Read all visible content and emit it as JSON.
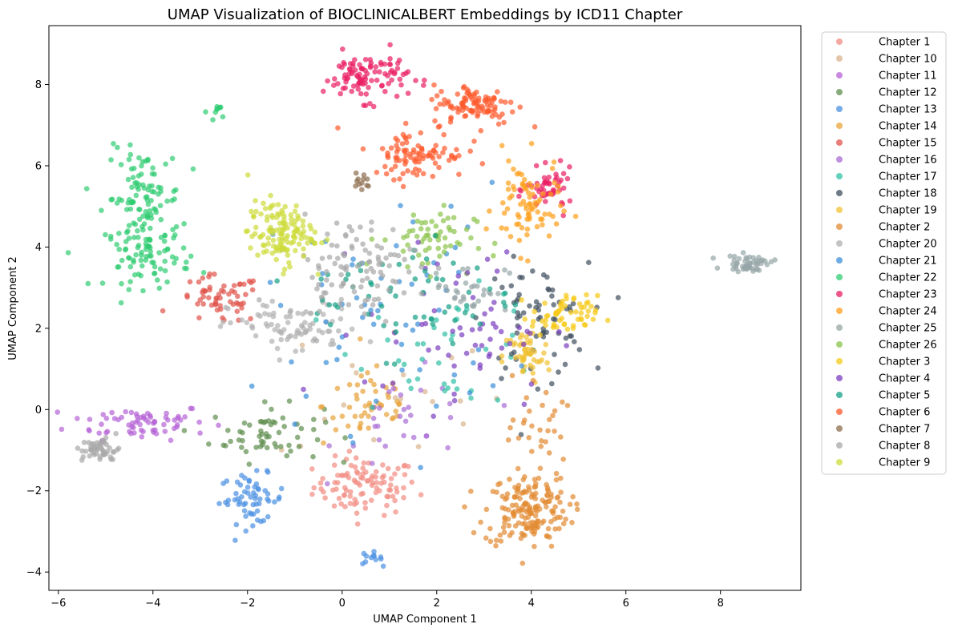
{
  "chart_data": {
    "type": "scatter",
    "title": "UMAP Visualization of BIOCLINICALBERT Embeddings by ICD11 Chapter",
    "xlabel": "UMAP Component 1",
    "ylabel": "UMAP Component 2",
    "xlim": [
      -6.2,
      9.7
    ],
    "ylim": [
      -4.45,
      9.45
    ],
    "xticks": [
      -6,
      -4,
      -2,
      0,
      2,
      4,
      6,
      8
    ],
    "yticks": [
      -4,
      -2,
      0,
      2,
      4,
      6,
      8
    ],
    "grid": false,
    "legend_position": "outside-right",
    "series": [
      {
        "name": "Chapter 1",
        "color": "#f28b82",
        "clusters": [
          {
            "cx": 0.5,
            "cy": -1.9,
            "sx": 0.55,
            "sy": 0.35,
            "n": 100
          }
        ]
      },
      {
        "name": "Chapter 10",
        "color": "#d9b38c",
        "clusters": [
          {
            "cx": 1.0,
            "cy": 0.5,
            "sx": 1.2,
            "sy": 1.0,
            "n": 20
          }
        ]
      },
      {
        "name": "Chapter 11",
        "color": "#b562d6",
        "clusters": [
          {
            "cx": -4.3,
            "cy": -0.3,
            "sx": 0.75,
            "sy": 0.22,
            "n": 70
          }
        ]
      },
      {
        "name": "Chapter 12",
        "color": "#5f8f4e",
        "clusters": [
          {
            "cx": -1.6,
            "cy": -0.6,
            "sx": 0.6,
            "sy": 0.35,
            "n": 60
          }
        ]
      },
      {
        "name": "Chapter 13",
        "color": "#4a90e2",
        "clusters": [
          {
            "cx": -1.9,
            "cy": -2.2,
            "sx": 0.35,
            "sy": 0.3,
            "n": 60
          },
          {
            "cx": 0.6,
            "cy": -3.65,
            "sx": 0.12,
            "sy": 0.08,
            "n": 12
          }
        ]
      },
      {
        "name": "Chapter 14",
        "color": "#e8a33a",
        "clusters": [
          {
            "cx": 0.6,
            "cy": 0.1,
            "sx": 0.5,
            "sy": 0.5,
            "n": 50
          }
        ]
      },
      {
        "name": "Chapter 15",
        "color": "#e0534a",
        "clusters": [
          {
            "cx": -2.6,
            "cy": 2.7,
            "sx": 0.45,
            "sy": 0.3,
            "n": 60
          }
        ]
      },
      {
        "name": "Chapter 16",
        "color": "#a96cd6",
        "clusters": [
          {
            "cx": 1.5,
            "cy": -0.3,
            "sx": 0.8,
            "sy": 0.6,
            "n": 30
          }
        ]
      },
      {
        "name": "Chapter 17",
        "color": "#2fc1a5",
        "clusters": [
          {
            "cx": 2.3,
            "cy": 1.5,
            "sx": 1.0,
            "sy": 0.7,
            "n": 40
          }
        ]
      },
      {
        "name": "Chapter 18",
        "color": "#3e4e5e",
        "clusters": [
          {
            "cx": 4.1,
            "cy": 2.2,
            "sx": 0.55,
            "sy": 0.7,
            "n": 70
          }
        ]
      },
      {
        "name": "Chapter 19",
        "color": "#f1c232",
        "clusters": [
          {
            "cx": 3.9,
            "cy": 1.3,
            "sx": 0.25,
            "sy": 0.35,
            "n": 50
          }
        ]
      },
      {
        "name": "Chapter 2",
        "color": "#e28a32",
        "clusters": [
          {
            "cx": 3.9,
            "cy": -2.5,
            "sx": 0.45,
            "sy": 0.45,
            "n": 160
          },
          {
            "cx": 4.1,
            "cy": -0.7,
            "sx": 0.3,
            "sy": 0.8,
            "n": 40
          }
        ]
      },
      {
        "name": "Chapter 20",
        "color": "#b0b0b0",
        "clusters": [
          {
            "cx": -1.0,
            "cy": 2.0,
            "sx": 0.7,
            "sy": 0.35,
            "n": 80
          }
        ]
      },
      {
        "name": "Chapter 21",
        "color": "#3b8fd9",
        "clusters": [
          {
            "cx": 1.0,
            "cy": 2.5,
            "sx": 1.3,
            "sy": 1.5,
            "n": 60
          }
        ]
      },
      {
        "name": "Chapter 22",
        "color": "#2ecc71",
        "clusters": [
          {
            "cx": -4.2,
            "cy": 5.2,
            "sx": 0.4,
            "sy": 0.6,
            "n": 100
          },
          {
            "cx": -4.1,
            "cy": 3.8,
            "sx": 0.45,
            "sy": 0.4,
            "n": 80
          },
          {
            "cx": -2.6,
            "cy": 7.35,
            "sx": 0.12,
            "sy": 0.1,
            "n": 10
          }
        ]
      },
      {
        "name": "Chapter 23",
        "color": "#e91e63",
        "clusters": [
          {
            "cx": 0.5,
            "cy": 8.2,
            "sx": 0.45,
            "sy": 0.3,
            "n": 100
          },
          {
            "cx": 4.4,
            "cy": 5.4,
            "sx": 0.25,
            "sy": 0.25,
            "n": 50
          }
        ]
      },
      {
        "name": "Chapter 24",
        "color": "#ff9f1a",
        "clusters": [
          {
            "cx": 3.9,
            "cy": 5.0,
            "sx": 0.35,
            "sy": 0.6,
            "n": 80
          }
        ]
      },
      {
        "name": "Chapter 25",
        "color": "#95a5a6",
        "clusters": [
          {
            "cx": 8.6,
            "cy": 3.6,
            "sx": 0.25,
            "sy": 0.1,
            "n": 50
          },
          {
            "cx": 2.7,
            "cy": 3.0,
            "sx": 0.4,
            "sy": 0.3,
            "n": 30
          }
        ]
      },
      {
        "name": "Chapter 26",
        "color": "#8bc34a",
        "clusters": [
          {
            "cx": 1.8,
            "cy": 4.2,
            "sx": 0.5,
            "sy": 0.4,
            "n": 60
          }
        ]
      },
      {
        "name": "Chapter 3",
        "color": "#f6c915",
        "clusters": [
          {
            "cx": 4.7,
            "cy": 2.3,
            "sx": 0.35,
            "sy": 0.25,
            "n": 60
          }
        ]
      },
      {
        "name": "Chapter 4",
        "color": "#7b3fbf",
        "clusters": [
          {
            "cx": 2.5,
            "cy": 2.0,
            "sx": 1.0,
            "sy": 1.0,
            "n": 60
          }
        ]
      },
      {
        "name": "Chapter 5",
        "color": "#16a085",
        "clusters": [
          {
            "cx": 1.5,
            "cy": 2.8,
            "sx": 1.1,
            "sy": 0.7,
            "n": 60
          }
        ]
      },
      {
        "name": "Chapter 6",
        "color": "#ff5a2c",
        "clusters": [
          {
            "cx": 2.8,
            "cy": 7.5,
            "sx": 0.45,
            "sy": 0.25,
            "n": 100
          },
          {
            "cx": 1.6,
            "cy": 6.3,
            "sx": 0.5,
            "sy": 0.3,
            "n": 90
          }
        ]
      },
      {
        "name": "Chapter 7",
        "color": "#8d6e4e",
        "clusters": [
          {
            "cx": 0.4,
            "cy": 5.6,
            "sx": 0.1,
            "sy": 0.12,
            "n": 12
          }
        ]
      },
      {
        "name": "Chapter 8",
        "color": "#a8a8a8",
        "clusters": [
          {
            "cx": 0.2,
            "cy": 3.5,
            "sx": 0.7,
            "sy": 0.6,
            "n": 100
          },
          {
            "cx": -5.1,
            "cy": -1.0,
            "sx": 0.2,
            "sy": 0.15,
            "n": 50
          }
        ]
      },
      {
        "name": "Chapter 9",
        "color": "#cddc39",
        "clusters": [
          {
            "cx": -1.3,
            "cy": 4.35,
            "sx": 0.35,
            "sy": 0.4,
            "n": 130
          }
        ]
      }
    ]
  }
}
